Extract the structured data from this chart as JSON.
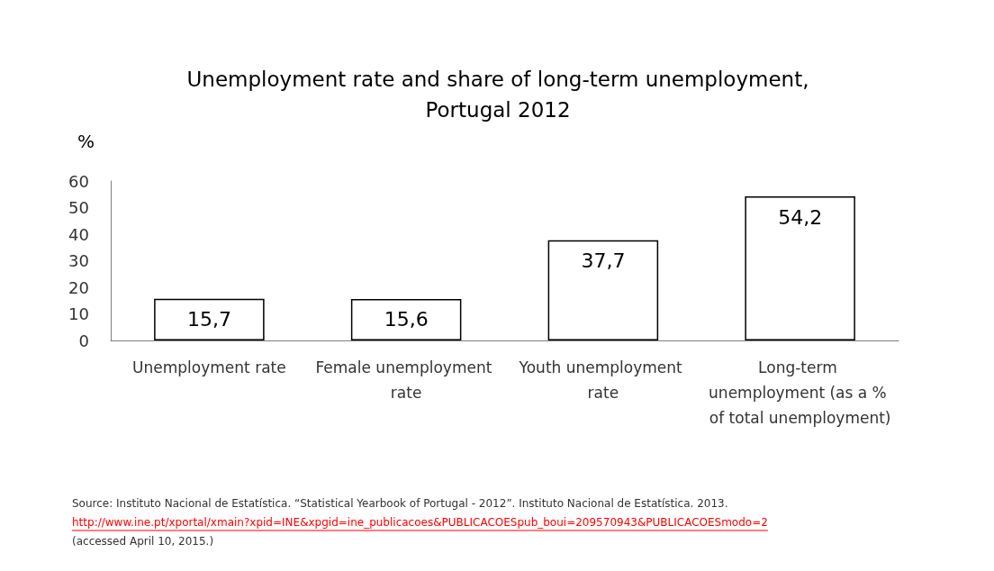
{
  "chart_data": {
    "type": "bar",
    "title": "Unemployment rate and share of long-term unemployment,\nPortugal 2012",
    "ylabel": "%",
    "categories": [
      "Unemployment rate",
      "Female unemployment rate",
      "Youth unemployment rate",
      "Long-term unemployment (as a % of total unemployment)"
    ],
    "values": [
      15.7,
      15.6,
      37.7,
      54.2
    ],
    "value_labels": [
      "15,7",
      "15,6",
      "37,7",
      "54,2"
    ],
    "color": "#ffffff",
    "ylim": [
      0,
      60
    ],
    "yticks": [
      0,
      10,
      20,
      30,
      40,
      50,
      60
    ],
    "grid": false,
    "annotations": [
      "Source: Instituto Nacional de Estatística. “Statistical Yearbook of Portugal - 2012”. Instituto Nacional de Estatística. 2013.",
      "http://www.ine.pt/xportal/xmain?xpid=INE&xpgid=ine_publicacoes&PUBLICACOESpub_boui=209570943&PUBLICACOESmodo=2",
      "(accessed April 10, 2015.)"
    ]
  }
}
